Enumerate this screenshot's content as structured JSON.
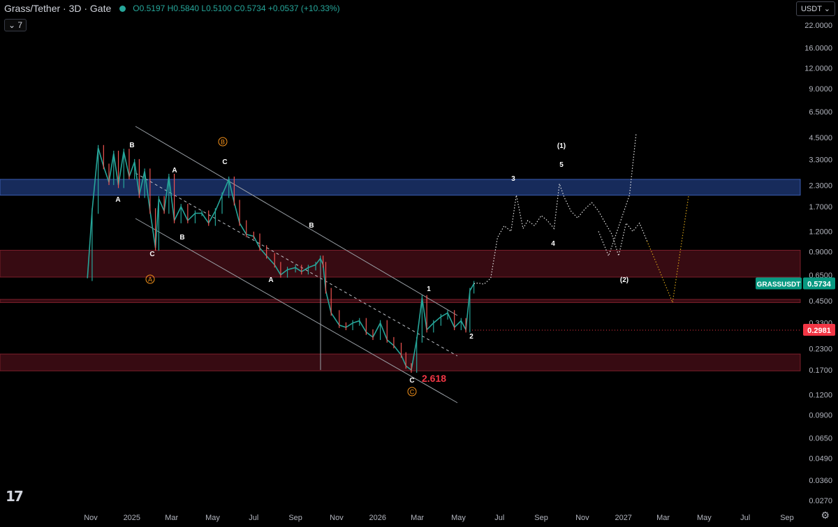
{
  "header": {
    "symbol": "Grass/Tether · 3D · Gate",
    "open": "O0.5197",
    "high": "H0.5840",
    "low": "L0.5100",
    "close": "C0.5734",
    "change": "+0.0537 (+10.33%)"
  },
  "interval_badge": "7",
  "currency_button": "USDT",
  "tv_logo": "17",
  "settings_icon": "gear-icon",
  "chart_data": {
    "type": "line",
    "title": "",
    "x_axis": {
      "tick_labels": [
        "Nov",
        "2025",
        "Mar",
        "May",
        "Jul",
        "Sep",
        "Nov",
        "2026",
        "Mar",
        "May",
        "Jul",
        "Sep",
        "Nov",
        "2027",
        "Mar",
        "May",
        "Jul",
        "Sep"
      ]
    },
    "y_axis": {
      "scale": "log",
      "tick_labels": [
        "22.0000",
        "16.0000",
        "12.0000",
        "9.0000",
        "6.5000",
        "4.5000",
        "3.3000",
        "2.3000",
        "1.7000",
        "1.2000",
        "0.9000",
        "0.6500",
        "0.4500",
        "0.3300",
        "0.2300",
        "0.1700",
        "0.1200",
        "0.0900",
        "0.0650",
        "0.0490",
        "0.0360",
        "0.0270"
      ],
      "tick_values": [
        22,
        16,
        12,
        9,
        6.5,
        4.5,
        3.3,
        2.3,
        1.7,
        1.2,
        0.9,
        0.65,
        0.45,
        0.33,
        0.23,
        0.17,
        0.12,
        0.09,
        0.065,
        0.049,
        0.036,
        0.027
      ],
      "range": [
        0.025,
        24
      ]
    },
    "price_path": {
      "name": "GRASSUSDT",
      "x": [
        "2024-10-27",
        "2024-11-03",
        "2024-11-12",
        "2024-11-20",
        "2024-11-28",
        "2024-12-05",
        "2024-12-12",
        "2024-12-20",
        "2024-12-28",
        "2025-01-05",
        "2025-01-12",
        "2025-01-20",
        "2025-01-28",
        "2025-02-05",
        "2025-02-10",
        "2025-02-18",
        "2025-02-25",
        "2025-03-05",
        "2025-03-15",
        "2025-03-25",
        "2025-04-05",
        "2025-04-15",
        "2025-04-25",
        "2025-05-05",
        "2025-05-15",
        "2025-05-25",
        "2025-06-02",
        "2025-06-10",
        "2025-06-20",
        "2025-07-01",
        "2025-07-10",
        "2025-07-20",
        "2025-08-01",
        "2025-08-10",
        "2025-08-20",
        "2025-09-01",
        "2025-09-10",
        "2025-09-20",
        "2025-10-01",
        "2025-10-08",
        "2025-10-12",
        "2025-10-16",
        "2025-10-24",
        "2025-11-05",
        "2025-11-15",
        "2025-11-25",
        "2025-12-05",
        "2025-12-15",
        "2025-12-25",
        "2026-01-05",
        "2026-01-15",
        "2026-01-25",
        "2026-02-05",
        "2026-02-12",
        "2026-02-20",
        "2026-02-28",
        "2026-03-08",
        "2026-03-15",
        "2026-03-25",
        "2026-04-05",
        "2026-04-15",
        "2026-04-25",
        "2026-05-05",
        "2026-05-12",
        "2026-05-18",
        "2026-05-24"
      ],
      "y": [
        0.62,
        1.6,
        3.9,
        3.0,
        2.4,
        3.6,
        2.3,
        3.7,
        2.6,
        3.2,
        2.0,
        2.8,
        1.6,
        0.95,
        1.9,
        1.6,
        2.6,
        1.4,
        1.7,
        1.4,
        1.55,
        1.55,
        1.35,
        1.6,
        2.0,
        2.5,
        1.8,
        1.35,
        1.15,
        1.12,
        0.95,
        0.85,
        0.75,
        0.65,
        0.7,
        0.72,
        0.68,
        0.72,
        0.75,
        0.82,
        0.75,
        0.52,
        0.38,
        0.32,
        0.31,
        0.33,
        0.34,
        0.29,
        0.27,
        0.33,
        0.26,
        0.24,
        0.21,
        0.18,
        0.17,
        0.26,
        0.47,
        0.3,
        0.33,
        0.36,
        0.38,
        0.31,
        0.34,
        0.3,
        0.52,
        0.5734
      ]
    },
    "projection": {
      "x": [
        "2026-05-24",
        "2026-05-30",
        "2026-06-08",
        "2026-06-18",
        "2026-06-28",
        "2026-07-08",
        "2026-07-18",
        "2026-07-26",
        "2026-08-05",
        "2026-08-12",
        "2026-08-22",
        "2026-09-01",
        "2026-09-10",
        "2026-09-20",
        "2026-09-28",
        "2026-10-05",
        "2026-10-15",
        "2026-10-25",
        "2026-11-05",
        "2026-11-15",
        "2026-11-25",
        "2026-12-05",
        "2026-12-15",
        "2026-12-25",
        "2027-01-05",
        "2027-01-15",
        "2027-01-25",
        "2027-02-05"
      ],
      "y": [
        0.5734,
        0.58,
        0.57,
        0.62,
        1.1,
        1.3,
        1.2,
        2.0,
        1.25,
        1.4,
        1.3,
        1.5,
        1.4,
        1.25,
        2.35,
        1.95,
        1.6,
        1.45,
        1.65,
        1.8,
        1.6,
        1.35,
        1.15,
        0.85,
        1.35,
        1.2,
        1.35,
        1.05
      ],
      "alt1": {
        "x": [
          "2026-11-25",
          "2026-12-10",
          "2027-01-10",
          "2027-01-20"
        ],
        "y": [
          1.2,
          0.85,
          2.0,
          4.8
        ]
      },
      "alt2": {
        "x": [
          "2027-02-05",
          "2027-02-20",
          "2027-03-15",
          "2027-04-08"
        ],
        "y": [
          1.05,
          0.75,
          0.44,
          2.0
        ]
      }
    },
    "zones": [
      {
        "name": "blue-zone",
        "from": 2.0,
        "to": 2.5,
        "color": "#1f3a7a"
      },
      {
        "name": "red-zone-1",
        "from": 0.63,
        "to": 0.92,
        "color": "#4a0f18"
      },
      {
        "name": "red-zone-2",
        "from": 0.44,
        "to": 0.46,
        "color": "#4a0f18"
      },
      {
        "name": "red-zone-3",
        "from": 0.168,
        "to": 0.213,
        "color": "#4a0f18"
      }
    ],
    "wave_labels": [
      "B",
      "A",
      "A",
      "C",
      "B",
      "C",
      "C",
      "A",
      "B",
      "B",
      "C",
      "1",
      "2",
      "3",
      "4",
      "5",
      "(1)",
      "(2)"
    ],
    "circled_labels": [
      "A",
      "B",
      "C"
    ],
    "fib_label": "2.618",
    "price_tags": [
      {
        "name": "GRASSUSDT",
        "value": "0.5734",
        "color": "#089981"
      },
      {
        "value": "0.2981",
        "color": "#f23645"
      }
    ],
    "colors": {
      "up": "#26a69a",
      "down": "#ef5350",
      "grid": "#141414"
    },
    "grid": false,
    "legend": "none"
  }
}
